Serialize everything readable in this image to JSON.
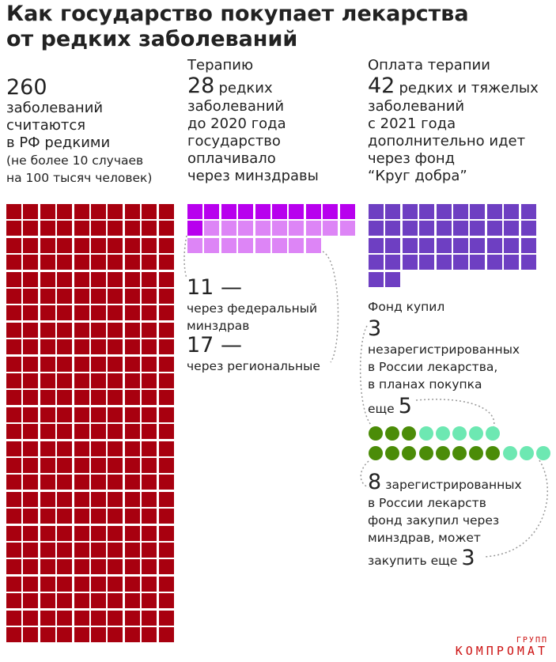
{
  "title_line1": "Как государство покупает лекарства",
  "title_line2": "от редких заболеваний",
  "col1": {
    "number": "260",
    "lines": [
      "заболеваний",
      "считаются",
      "в РФ редкими"
    ],
    "note_lines": [
      "(не более 10 случаев",
      "на 100 тысяч человек)"
    ]
  },
  "col2": {
    "heading": "Терапию",
    "number": "28",
    "number_suffix": "редких",
    "lines": [
      "заболеваний",
      "до 2020 года",
      "государство",
      "оплачивало",
      "через минздравы"
    ],
    "fed_number": "11 —",
    "fed_lines": [
      "через федеральный",
      "минздрав"
    ],
    "reg_number": "17 —",
    "reg_lines": [
      "через региональные"
    ]
  },
  "col3": {
    "heading": "Оплата терапии",
    "number": "42",
    "number_suffix": "редких и тяжелых",
    "lines": [
      "заболеваний",
      "с 2021 года",
      "дополнительно идет",
      "через фонд",
      "“Круг добра”"
    ],
    "fund_bought": "Фонд купил",
    "unreg_number": "3",
    "unreg_lines": [
      "незарегистрированных",
      "в России лекарства,",
      "в планах покупка"
    ],
    "more_label": "еще",
    "more_number": "5",
    "reg_number": "8",
    "reg_first": "зарегистрированных",
    "reg_lines": [
      "в России лекарств",
      "фонд закупил через",
      "минздрав, может"
    ],
    "can_buy_label": "закупить еще",
    "can_buy_number": "3"
  },
  "watermark": {
    "top": "ГРУПП",
    "main": "КОМПРОМАТ"
  },
  "chart_data": {
    "type": "unit-chart",
    "groups": [
      {
        "name": "260",
        "value": 260
      },
      {
        "name": "11",
        "value": 11
      },
      {
        "name": "17",
        "value": 17
      },
      {
        "name": "42",
        "value": 42
      },
      {
        "name": "3",
        "value": 3
      },
      {
        "name": "5",
        "value": 5
      },
      {
        "name": "8",
        "value": 8
      },
      {
        "name": "3",
        "value": 3
      }
    ]
  },
  "colors": {
    "rare": "#a8000f",
    "federal": "#b800ee",
    "regional": "#dd85f6",
    "fund": "#6e3fc2",
    "bought": "#4b8c08",
    "planned": "#6de8b2",
    "connector": "#999999"
  }
}
